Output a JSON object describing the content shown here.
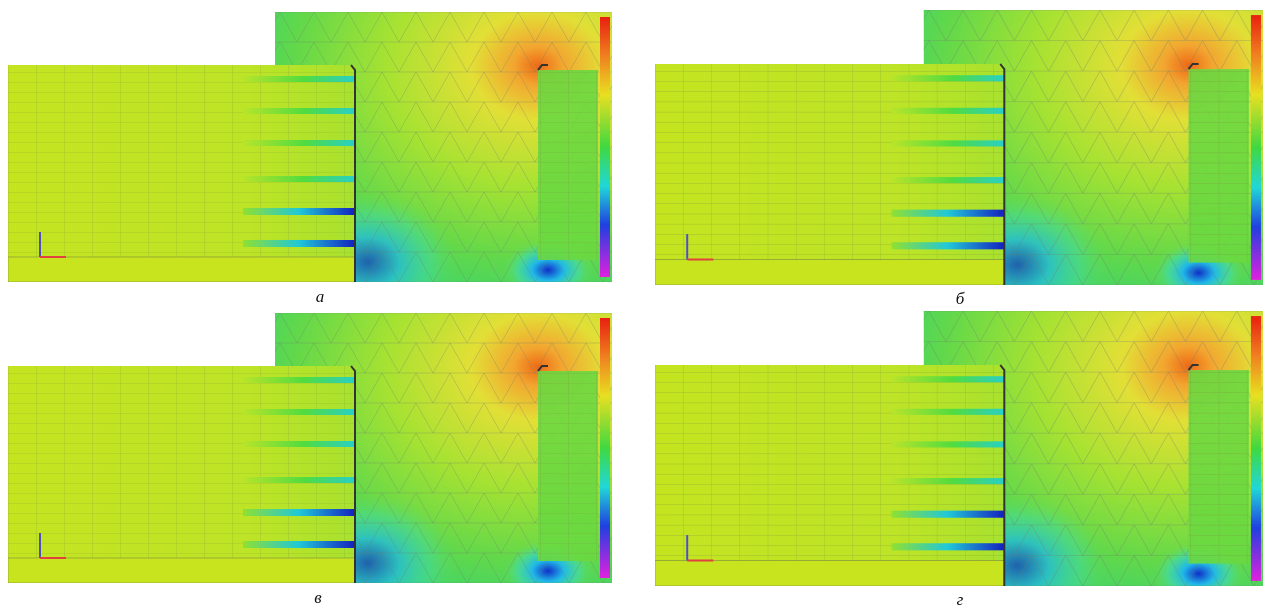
{
  "captions": [
    "а",
    "б",
    "в",
    "г"
  ]
}
